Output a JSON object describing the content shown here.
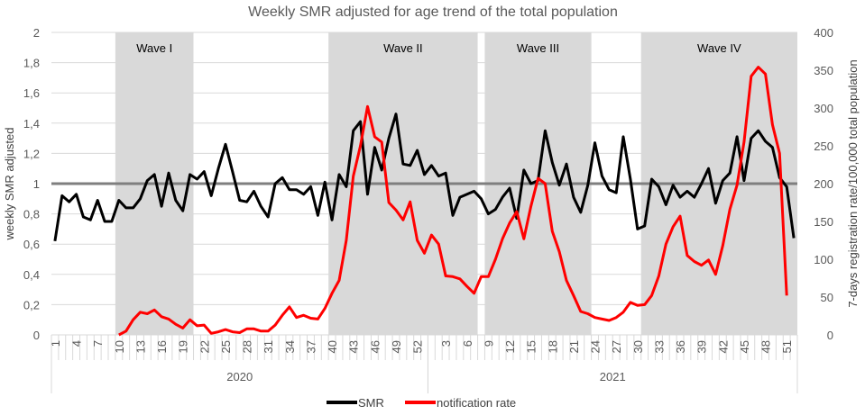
{
  "chart_data": {
    "type": "line",
    "title": "Weekly SMR adjusted for age trend of the total population",
    "ylabel": "weekly SMR adjusted",
    "y2label": "7-days registration rate/100,000 total population",
    "ylim": [
      0,
      2
    ],
    "y2lim": [
      0,
      400
    ],
    "yticks": [
      "0",
      "0,2",
      "0,4",
      "0,6",
      "0,8",
      "1",
      "1,2",
      "1,4",
      "1,6",
      "1,8",
      "2"
    ],
    "y2ticks": [
      "0",
      "50",
      "100",
      "150",
      "200",
      "250",
      "300",
      "350",
      "400"
    ],
    "grid": true,
    "legend_position": "bottom",
    "reference_line": {
      "value": 1,
      "color": "#7f7f7f"
    },
    "years": [
      {
        "label": "2020",
        "weeks": 53
      },
      {
        "label": "2021",
        "weeks": 52
      }
    ],
    "xtick_every": 3,
    "waves": [
      {
        "label": "Wave I",
        "start": {
          "year": "2020",
          "week": 10
        },
        "end": {
          "year": "2020",
          "week": 20
        }
      },
      {
        "label": "Wave II",
        "start": {
          "year": "2020",
          "week": 40
        },
        "end": {
          "year": "2021",
          "week": 7
        }
      },
      {
        "label": "Wave III",
        "start": {
          "year": "2021",
          "week": 9
        },
        "end": {
          "year": "2021",
          "week": 23
        }
      },
      {
        "label": "Wave IV",
        "start": {
          "year": "2021",
          "week": 31
        },
        "end": {
          "year": "2021",
          "week": 52
        }
      }
    ],
    "series": [
      {
        "name": "SMR",
        "axis": "left",
        "color": "#000000",
        "values": [
          0.62,
          0.92,
          0.88,
          0.93,
          0.78,
          0.76,
          0.89,
          0.75,
          0.75,
          0.89,
          0.84,
          0.84,
          0.9,
          1.02,
          1.06,
          0.85,
          1.07,
          0.89,
          0.82,
          1.06,
          1.03,
          1.08,
          0.92,
          1.1,
          1.26,
          1.08,
          0.89,
          0.88,
          0.95,
          0.85,
          0.78,
          1.0,
          1.04,
          0.96,
          0.96,
          0.93,
          0.98,
          0.79,
          1.01,
          0.76,
          1.06,
          0.98,
          1.35,
          1.41,
          0.93,
          1.24,
          1.09,
          1.3,
          1.46,
          1.13,
          1.12,
          1.22,
          1.06,
          1.12,
          1.05,
          1.07,
          0.79,
          0.91,
          0.93,
          0.95,
          0.9,
          0.8,
          0.83,
          0.91,
          0.97,
          0.77,
          1.09,
          1.0,
          1.02,
          1.35,
          1.14,
          0.99,
          1.13,
          0.91,
          0.81,
          0.99,
          1.27,
          1.05,
          0.96,
          0.94,
          1.31,
          1.03,
          0.7,
          0.72,
          1.03,
          0.98,
          0.86,
          0.99,
          0.91,
          0.95,
          0.91,
          1.0,
          1.1,
          0.87,
          1.02,
          1.07,
          1.31,
          1.02,
          1.3,
          1.35,
          1.28,
          1.24,
          1.04,
          0.98,
          0.64
        ]
      },
      {
        "name": "notification rate",
        "axis": "right",
        "color": "#ff0000",
        "start_index": 9,
        "values": [
          0,
          5,
          20,
          30,
          28,
          33,
          24,
          21,
          14,
          9,
          20,
          12,
          13,
          2,
          4,
          7,
          4,
          3,
          8,
          8,
          5,
          5,
          13,
          26,
          37,
          23,
          26,
          22,
          21,
          35,
          55,
          72,
          125,
          210,
          250,
          302,
          262,
          255,
          175,
          165,
          152,
          176,
          125,
          108,
          132,
          120,
          78,
          77,
          74,
          64,
          55,
          77,
          77,
          100,
          127,
          148,
          163,
          127,
          170,
          207,
          200,
          137,
          110,
          72,
          52,
          31,
          28,
          23,
          21,
          19,
          23,
          30,
          43,
          39,
          40,
          52,
          78,
          120,
          143,
          157,
          105,
          97,
          92,
          99,
          80,
          118,
          166,
          198,
          255,
          342,
          354,
          345,
          278,
          240,
          52
        ]
      }
    ]
  },
  "legend": [
    {
      "label": "SMR",
      "color": "#000000"
    },
    {
      "label": "notification rate",
      "color": "#ff0000"
    }
  ]
}
